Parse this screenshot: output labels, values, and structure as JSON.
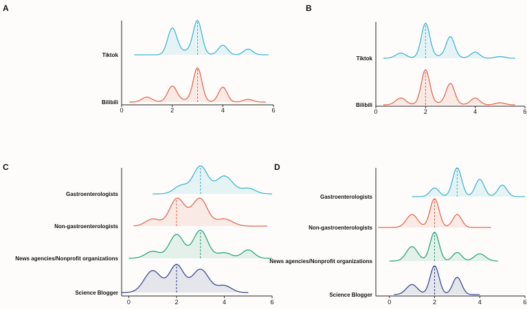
{
  "colors": {
    "cyan": "#3fb6d3",
    "red": "#e4694f",
    "green": "#2aa57f",
    "navy": "#3b4a8f",
    "axis": "#222222"
  },
  "chart_data": [
    {
      "panel": "A",
      "type": "ridgeline",
      "xlim": [
        0,
        6
      ],
      "xticks": [
        0,
        2,
        4,
        6
      ],
      "series": [
        {
          "name": "Tiktok",
          "color": "cyan",
          "range": [
            0.5,
            5.8
          ],
          "median": 3,
          "peaks": [
            [
              2,
              0.8,
              0.18
            ],
            [
              3,
              1.0,
              0.17
            ],
            [
              4,
              0.3,
              0.18
            ],
            [
              5,
              0.18,
              0.18
            ],
            [
              2.6,
              0.12,
              0.4
            ]
          ]
        },
        {
          "name": "Bilibili",
          "color": "red",
          "range": [
            0.3,
            5.7
          ],
          "median": 3,
          "peaks": [
            [
              1,
              0.15,
              0.2
            ],
            [
              2,
              0.45,
              0.18
            ],
            [
              3,
              1.0,
              0.17
            ],
            [
              4,
              0.45,
              0.17
            ],
            [
              5,
              0.08,
              0.2
            ],
            [
              2.5,
              0.06,
              0.5
            ]
          ]
        }
      ]
    },
    {
      "panel": "B",
      "type": "ridgeline",
      "xlim": [
        0,
        6
      ],
      "xticks": [
        0,
        2,
        4,
        6
      ],
      "series": [
        {
          "name": "Tiktok",
          "color": "cyan",
          "range": [
            0.3,
            5.6
          ],
          "median": 2,
          "peaks": [
            [
              1,
              0.15,
              0.2
            ],
            [
              2,
              1.0,
              0.17
            ],
            [
              3,
              0.6,
              0.17
            ],
            [
              4,
              0.18,
              0.18
            ],
            [
              5,
              0.05,
              0.2
            ],
            [
              2.5,
              0.06,
              0.6
            ]
          ]
        },
        {
          "name": "Bilibili",
          "color": "red",
          "range": [
            0.3,
            5.6
          ],
          "median": 2,
          "peaks": [
            [
              1,
              0.2,
              0.2
            ],
            [
              2,
              1.0,
              0.17
            ],
            [
              3,
              0.6,
              0.17
            ],
            [
              4,
              0.2,
              0.18
            ],
            [
              5,
              0.06,
              0.2
            ],
            [
              2.5,
              0.05,
              0.6
            ]
          ]
        }
      ]
    },
    {
      "panel": "C",
      "type": "ridgeline",
      "xlim": [
        -0.3,
        6
      ],
      "xticks": [
        0,
        2,
        4,
        6
      ],
      "series": [
        {
          "name": "Gastroenterologists",
          "color": "cyan",
          "range": [
            1,
            6
          ],
          "median": 3,
          "peaks": [
            [
              3,
              1.0,
              0.3
            ],
            [
              4,
              0.65,
              0.35
            ],
            [
              2.2,
              0.3,
              0.3
            ],
            [
              5,
              0.2,
              0.3
            ]
          ]
        },
        {
          "name": "Non-gastroenterologists",
          "color": "red",
          "range": [
            0.2,
            5.8
          ],
          "median": 2,
          "peaks": [
            [
              2,
              1.0,
              0.3
            ],
            [
              3,
              1.0,
              0.3
            ],
            [
              1,
              0.3,
              0.3
            ],
            [
              4,
              0.3,
              0.35
            ],
            [
              2.5,
              0.3,
              0.5
            ]
          ]
        },
        {
          "name": "News agencies/Nonprofit organizations",
          "color": "green",
          "range": [
            0,
            6
          ],
          "median": 3,
          "peaks": [
            [
              2,
              0.85,
              0.3
            ],
            [
              3,
              1.0,
              0.3
            ],
            [
              1,
              0.25,
              0.3
            ],
            [
              5,
              0.3,
              0.25
            ],
            [
              4,
              0.2,
              0.3
            ]
          ]
        },
        {
          "name": "Science Blogger",
          "color": "navy",
          "range": [
            -0.3,
            5
          ],
          "median": 2,
          "peaks": [
            [
              1,
              0.8,
              0.35
            ],
            [
              2,
              1.0,
              0.3
            ],
            [
              3,
              0.85,
              0.35
            ],
            [
              4,
              0.25,
              0.3
            ]
          ]
        }
      ]
    },
    {
      "panel": "D",
      "type": "ridgeline",
      "xlim": [
        -0.6,
        6
      ],
      "xticks": [
        0,
        2,
        4,
        6
      ],
      "series": [
        {
          "name": "Gastroenterologists",
          "color": "cyan",
          "range": [
            1,
            6
          ],
          "median": 3,
          "peaks": [
            [
              2,
              0.3,
              0.2
            ],
            [
              3,
              1.0,
              0.2
            ],
            [
              4,
              0.6,
              0.2
            ],
            [
              5,
              0.4,
              0.2
            ]
          ]
        },
        {
          "name": "Non-gastroenterologists",
          "color": "red",
          "range": [
            -0.5,
            4.5
          ],
          "median": 2,
          "peaks": [
            [
              1,
              0.45,
              0.25
            ],
            [
              2,
              1.0,
              0.2
            ],
            [
              3,
              0.45,
              0.2
            ]
          ]
        },
        {
          "name": "News agencies/Nonprofit organizations",
          "color": "green",
          "range": [
            0,
            4.8
          ],
          "median": 2,
          "peaks": [
            [
              1,
              0.5,
              0.25
            ],
            [
              2,
              1.0,
              0.2
            ],
            [
              3,
              0.3,
              0.2
            ],
            [
              4,
              0.25,
              0.25
            ]
          ]
        },
        {
          "name": "Science Blogger",
          "color": "navy",
          "range": [
            0.2,
            4
          ],
          "median": 2,
          "peaks": [
            [
              1,
              0.35,
              0.25
            ],
            [
              2,
              1.0,
              0.2
            ],
            [
              3,
              0.6,
              0.2
            ]
          ]
        }
      ]
    }
  ]
}
